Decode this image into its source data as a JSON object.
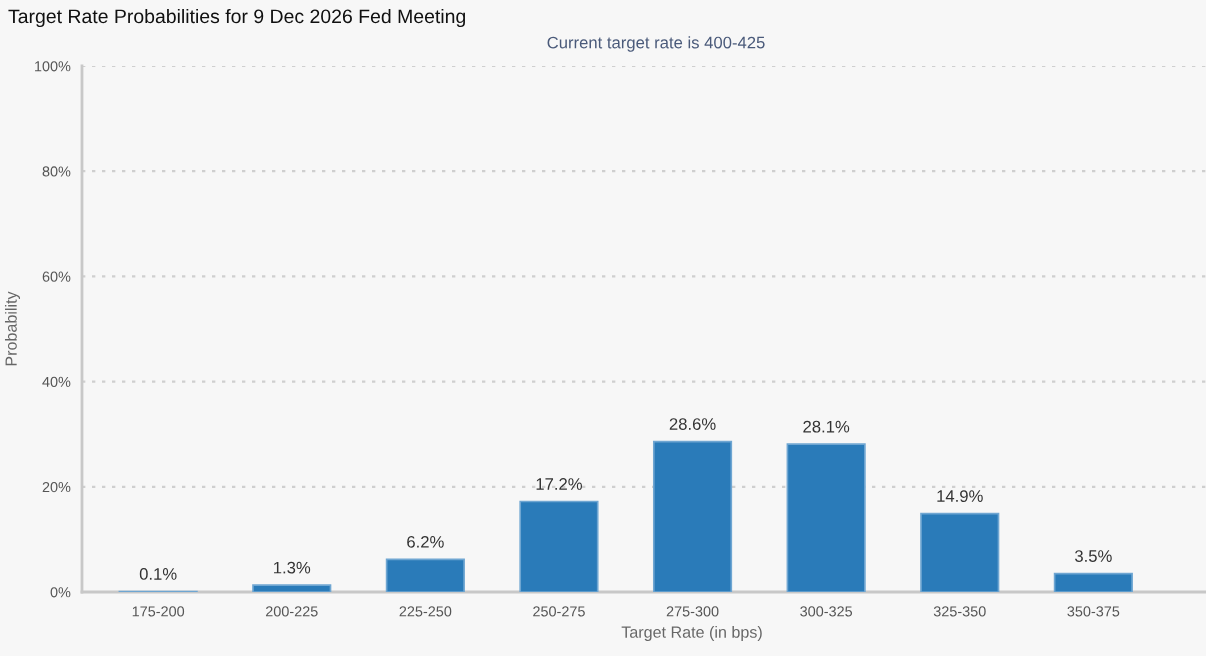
{
  "chart_data": {
    "type": "bar",
    "title": "Target Rate Probabilities for 9 Dec 2026 Fed Meeting",
    "subtitle": "Current target rate is 400-425",
    "xlabel": "Target Rate (in bps)",
    "ylabel": "Probability",
    "categories": [
      "175-200",
      "200-225",
      "225-250",
      "250-275",
      "275-300",
      "300-325",
      "325-350",
      "350-375"
    ],
    "values": [
      0.1,
      1.3,
      6.2,
      17.2,
      28.6,
      28.1,
      14.9,
      3.5
    ],
    "color": "#2a7bb9",
    "value_labels": [
      "0.1%",
      "1.3%",
      "6.2%",
      "17.2%",
      "28.6%",
      "28.1%",
      "14.9%",
      "3.5%"
    ],
    "ylim": [
      0,
      100
    ],
    "yticks": [
      {
        "value": 0,
        "label": "0%"
      },
      {
        "value": 20,
        "label": "20%"
      },
      {
        "value": 40,
        "label": "40%"
      },
      {
        "value": 60,
        "label": "60%"
      },
      {
        "value": 80,
        "label": "80%"
      },
      {
        "value": 100,
        "label": "100%"
      }
    ],
    "grid": "y"
  }
}
